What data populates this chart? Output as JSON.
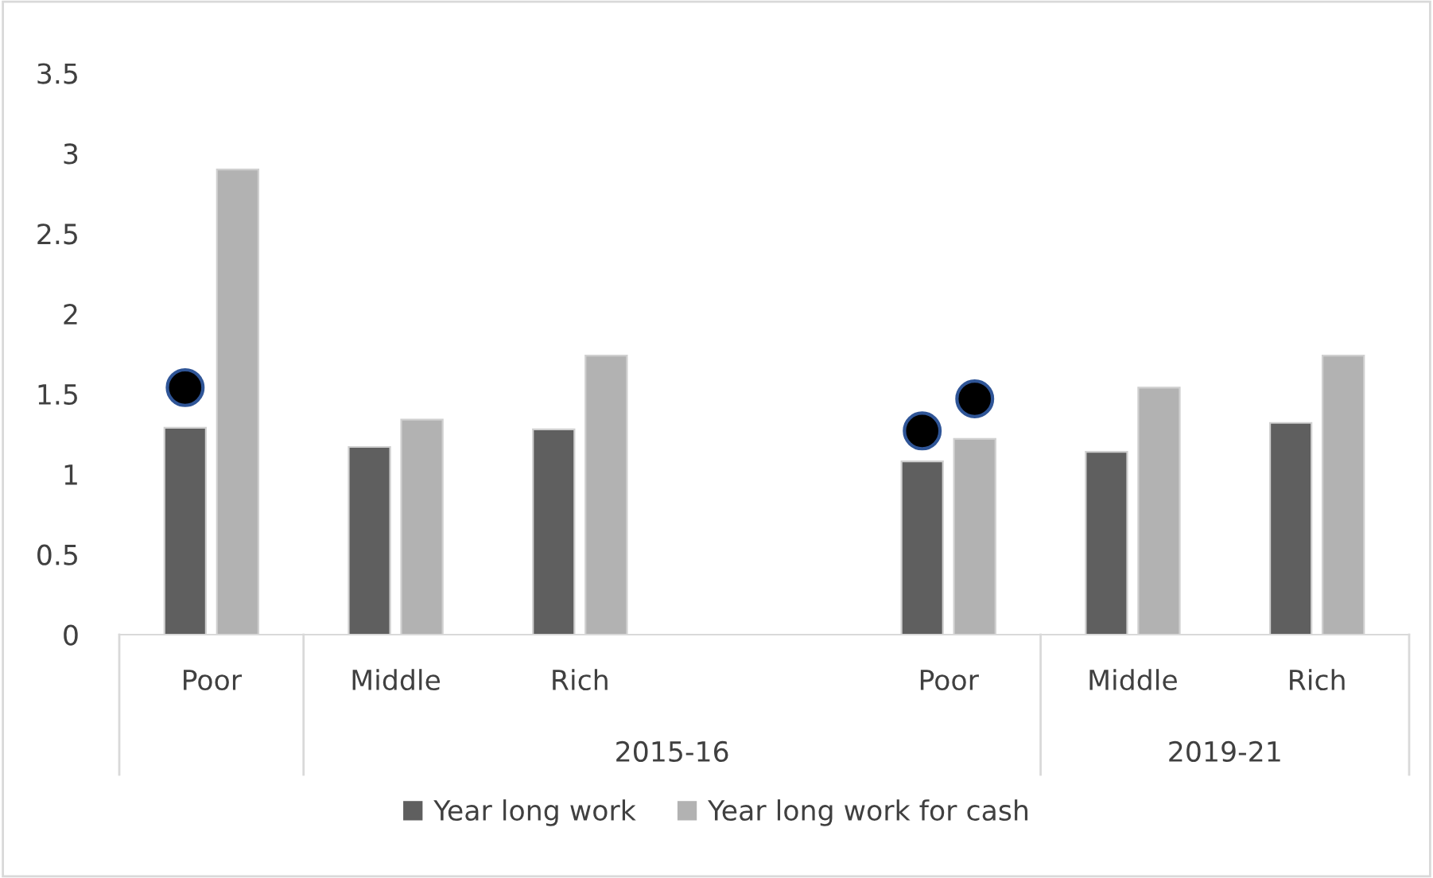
{
  "chart_data": {
    "type": "bar",
    "categories": [
      "Poor",
      "Middle",
      "Rich",
      null,
      "Poor",
      "Middle",
      "Rich"
    ],
    "series": [
      {
        "name": "Year long work",
        "color": "#5f5f5f",
        "values": [
          1.29,
          1.17,
          1.28,
          null,
          1.08,
          1.14,
          1.32
        ]
      },
      {
        "name": "Year long work for cash",
        "color": "#b2b2b2",
        "values": [
          2.9,
          1.34,
          1.74,
          null,
          1.22,
          1.54,
          1.74
        ]
      },
      {
        "type": "scatter",
        "color": "#000000",
        "values": [
          1.54,
          null,
          null,
          null,
          1.27,
          null,
          null
        ]
      },
      {
        "type": "scatter",
        "color": "#000000",
        "values": [
          null,
          null,
          null,
          null,
          1.47,
          null,
          null
        ]
      }
    ],
    "annotations": [
      "2015-16",
      "2019-21"
    ],
    "ylim": [
      0,
      3.5
    ],
    "yticks": [
      0,
      0.5,
      1,
      1.5,
      2,
      2.5,
      3,
      3.5
    ],
    "grid": false,
    "legend": "bottom",
    "marker": "circle"
  }
}
